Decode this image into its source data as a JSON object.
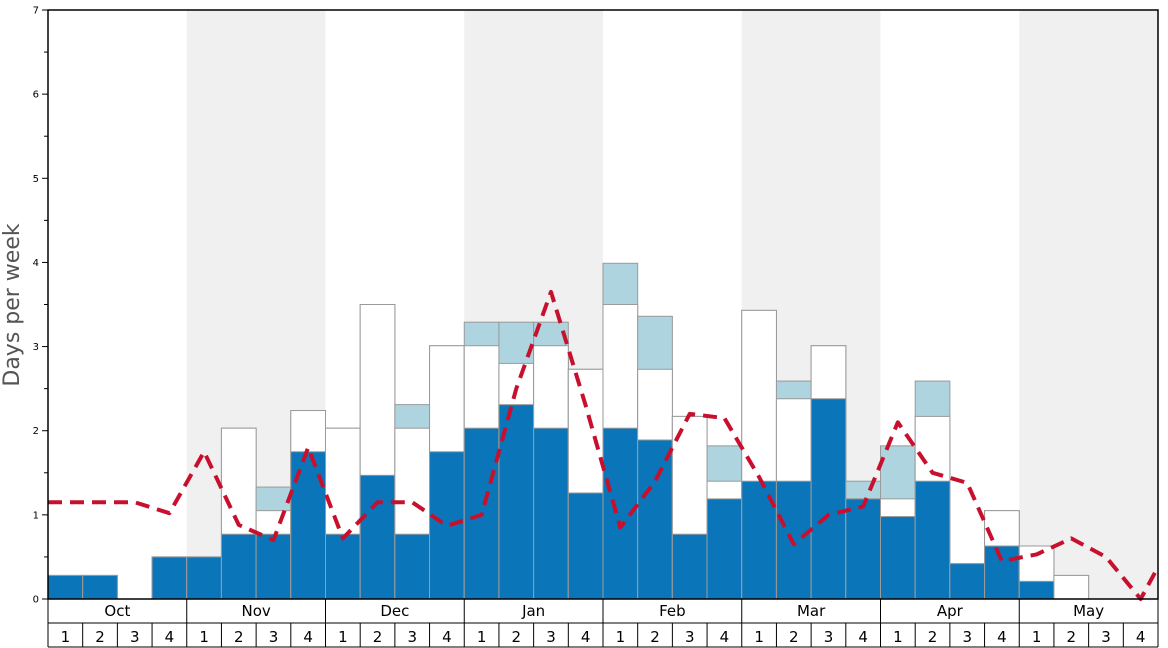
{
  "chart_data": {
    "type": "bar",
    "ylabel": "Days per week",
    "ylim": [
      0,
      7
    ],
    "yticks": [
      "0",
      "1",
      "2",
      "3",
      "4",
      "5",
      "6",
      "7"
    ],
    "months": [
      "Oct",
      "Nov",
      "Dec",
      "Jan",
      "Feb",
      "Mar",
      "Apr",
      "May"
    ],
    "week_labels": [
      "1",
      "2",
      "3",
      "4"
    ],
    "shaded_months": [
      "Nov",
      "Jan",
      "Mar",
      "May"
    ],
    "colors": {
      "base": "#0a75b9",
      "light_blue": "#aed4e0",
      "white_bar": "#ffffff",
      "bar_edge": "#9a9a9a",
      "line": "#c8102e",
      "shade": "#f0f0f0"
    },
    "series": [
      {
        "key": "dark",
        "values": [
          0.28,
          0.28,
          0,
          0.5,
          0.5,
          0.77,
          0.77,
          1.75,
          0.77,
          1.47,
          0.77,
          1.75,
          2.03,
          2.31,
          2.03,
          1.26,
          2.03,
          1.89,
          0.77,
          1.19,
          1.4,
          1.4,
          2.38,
          1.19,
          0.98,
          1.4,
          0.42,
          0.63,
          0.21,
          0,
          0,
          0
        ]
      },
      {
        "key": "white",
        "values": [
          0.28,
          0.28,
          0,
          0.5,
          0.5,
          2.03,
          1.05,
          2.24,
          2.03,
          3.5,
          2.03,
          3.01,
          3.01,
          2.8,
          3.01,
          2.73,
          3.5,
          2.73,
          2.17,
          1.4,
          3.43,
          2.38,
          3.01,
          1.19,
          1.19,
          2.17,
          0.42,
          1.05,
          0.63,
          0.28,
          0,
          0
        ]
      },
      {
        "key": "light",
        "values": [
          0.28,
          0.28,
          0,
          0.5,
          0.5,
          2.03,
          1.33,
          2.24,
          2.03,
          3.5,
          2.31,
          3.01,
          3.29,
          3.29,
          3.29,
          2.73,
          3.99,
          3.36,
          2.17,
          1.82,
          3.43,
          2.59,
          3.01,
          1.4,
          1.82,
          2.59,
          0.42,
          1.05,
          0.63,
          0.28,
          0,
          0
        ]
      },
      {
        "key": "trend",
        "values": [
          1.15,
          1.15,
          1.15,
          1.02,
          1.75,
          0.88,
          0.7,
          1.8,
          0.72,
          1.15,
          1.15,
          0.87,
          1.0,
          2.5,
          3.65,
          2.3,
          0.85,
          1.4,
          2.2,
          2.15,
          1.45,
          0.65,
          1.0,
          1.1,
          2.1,
          1.5,
          1.38,
          0.45,
          0.53,
          0.72,
          0.5,
          0.0
        ]
      }
    ],
    "trend_end_value": 0.38
  }
}
